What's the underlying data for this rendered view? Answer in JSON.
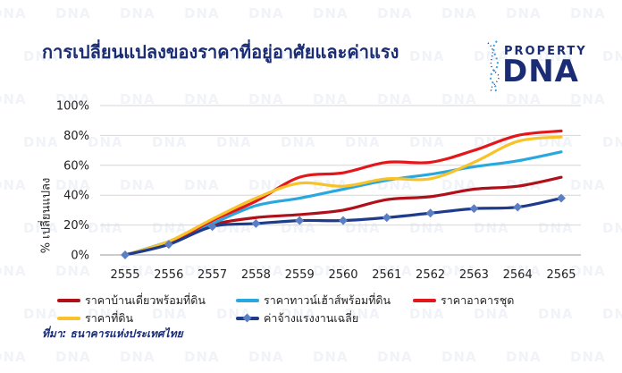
{
  "header": {
    "title": "การเปลี่ยนแปลงของราคาที่อยู่อาศัยและค่าแรง"
  },
  "brand": {
    "top": "PROPERTY",
    "main": "DNA",
    "color": "#1a2c73",
    "accent": "#3aa0e0"
  },
  "watermark_text": "DNA",
  "source": "ที่มา: ธนาคารแห่งประเทศไทย",
  "chart_data": {
    "type": "line",
    "title": "การเปลี่ยนแปลงของราคาที่อยู่อาศัยและค่าแรง",
    "xlabel": "",
    "ylabel": "% เปลี่ยนแปลง",
    "x": [
      "2555",
      "2556",
      "2557",
      "2558",
      "2559",
      "2560",
      "2561",
      "2562",
      "2563",
      "2564",
      "2565"
    ],
    "ylim": [
      0,
      100
    ],
    "yticks": [
      "0%",
      "20%",
      "40%",
      "60%",
      "80%",
      "100%"
    ],
    "ytick_values": [
      0,
      20,
      40,
      60,
      80,
      100
    ],
    "grid": true,
    "legend_position": "bottom",
    "series": [
      {
        "name": "ราคาบ้านเดี่ยวพร้อมที่ดิน",
        "color": "#b01019",
        "values": [
          0,
          8,
          20,
          25,
          27,
          30,
          37,
          39,
          44,
          46,
          52
        ],
        "marker": false
      },
      {
        "name": "ราคาทาวน์เฮ้าส์พร้อมที่ดิน",
        "color": "#29a8e0",
        "values": [
          0,
          9,
          21,
          33,
          38,
          44,
          50,
          54,
          59,
          63,
          69
        ],
        "marker": false
      },
      {
        "name": "ราคาอาคารชุด",
        "color": "#e3161b",
        "values": [
          0,
          8,
          23,
          36,
          52,
          55,
          62,
          62,
          70,
          80,
          83
        ],
        "marker": false
      },
      {
        "name": "ราคาที่ดิน",
        "color": "#f8c22a",
        "values": [
          0,
          9,
          24,
          38,
          48,
          46,
          51,
          51,
          62,
          76,
          79
        ],
        "marker": false
      },
      {
        "name": "ค่าจ้างแรงงานเฉลี่ย",
        "color": "#1f3c8c",
        "values": [
          0,
          7,
          19,
          21,
          23,
          23,
          25,
          28,
          31,
          32,
          38
        ],
        "marker": true
      }
    ]
  }
}
